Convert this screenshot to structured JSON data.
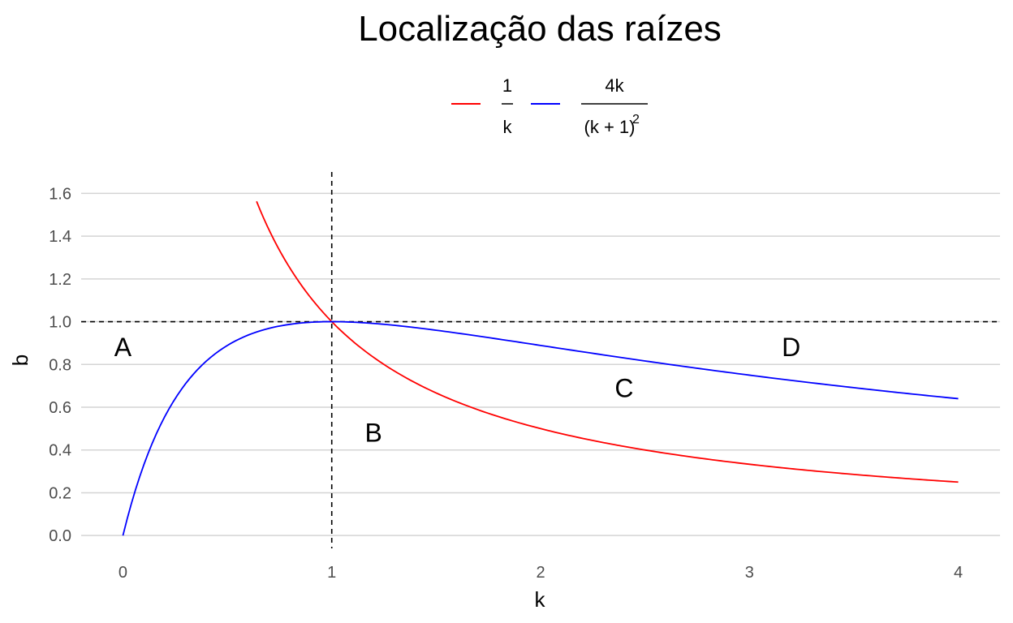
{
  "chart_data": {
    "type": "line",
    "title": "Localização das raízes",
    "xlabel": "k",
    "ylabel": "b",
    "xlim": [
      -0.2,
      4.2
    ],
    "ylim": [
      -0.06,
      1.7
    ],
    "x_ticks": [
      "0",
      "1",
      "2",
      "3",
      "4"
    ],
    "y_ticks": [
      "0.0",
      "0.2",
      "0.4",
      "0.6",
      "0.8",
      "1.0",
      "1.2",
      "1.4",
      "1.6"
    ],
    "grid": "horizontal",
    "legend_position": "top",
    "legend": {
      "entry1": {
        "numerator": "1",
        "denominator": "k"
      },
      "entry2": {
        "numerator": "4k",
        "denominator_base": "(k + 1)",
        "denominator_exponent": "2"
      }
    },
    "series": [
      {
        "formula": "1/k",
        "color": "#ff0000",
        "x_range": [
          0.64,
          4.0
        ],
        "x": [
          0.64,
          0.7,
          0.8,
          0.9,
          1.0,
          1.2,
          1.5,
          2.0,
          2.5,
          3.0,
          3.5,
          4.0
        ],
        "y": [
          1.5625,
          1.4286,
          1.25,
          1.1111,
          1.0,
          0.8333,
          0.6667,
          0.5,
          0.4,
          0.3333,
          0.2857,
          0.25
        ]
      },
      {
        "formula": "4k/(k+1)^2",
        "color": "#0000ff",
        "x_range": [
          0.0,
          4.0
        ],
        "x": [
          0.0,
          0.1,
          0.2,
          0.3,
          0.5,
          0.7,
          1.0,
          1.5,
          2.0,
          2.5,
          3.0,
          3.5,
          4.0
        ],
        "y": [
          0.0,
          0.3306,
          0.5556,
          0.7101,
          0.8889,
          0.9689,
          1.0,
          0.96,
          0.8889,
          0.8163,
          0.75,
          0.6914,
          0.64
        ]
      }
    ],
    "reference_lines": [
      {
        "orientation": "horizontal",
        "value": 1.0,
        "style": "dashed",
        "color": "#000000"
      },
      {
        "orientation": "vertical",
        "value": 1.0,
        "style": "dashed",
        "color": "#000000"
      }
    ],
    "annotations": [
      {
        "text": "A",
        "x": 0.0,
        "y": 0.88
      },
      {
        "text": "B",
        "x": 1.2,
        "y": 0.48
      },
      {
        "text": "C",
        "x": 2.4,
        "y": 0.69
      },
      {
        "text": "D",
        "x": 3.2,
        "y": 0.88
      }
    ]
  }
}
